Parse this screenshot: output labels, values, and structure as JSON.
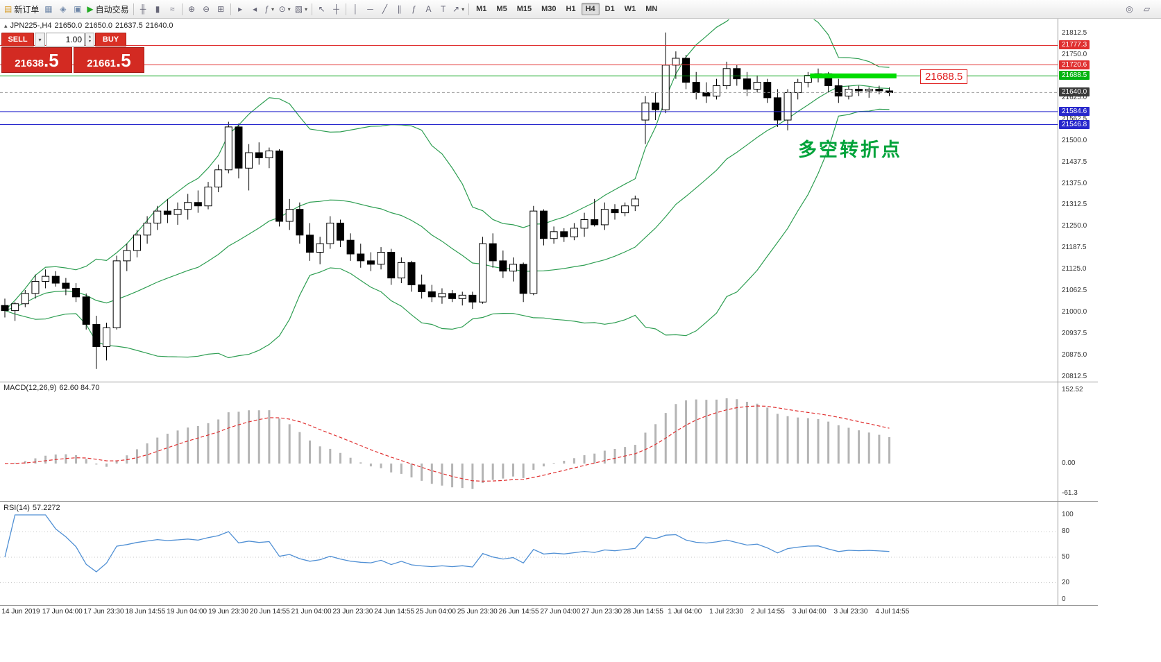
{
  "toolbar": {
    "groups": [
      [
        {
          "name": "new-order-button",
          "icon": "new-order-icon",
          "glyph": "▤",
          "color": "#d89c28",
          "label": "新订单"
        },
        {
          "name": "market-watch-button",
          "icon": "market-watch-icon",
          "glyph": "▦",
          "color": "#6f87a8"
        },
        {
          "name": "navigator-button",
          "icon": "navigator-icon",
          "glyph": "◈",
          "color": "#6f87a8"
        },
        {
          "name": "terminal-button",
          "icon": "terminal-icon",
          "glyph": "▣",
          "color": "#6f87a8"
        },
        {
          "name": "autotrading-button",
          "icon": "play-icon",
          "glyph": "▶",
          "color": "#22aa22",
          "label": "自动交易"
        }
      ],
      [
        {
          "name": "bar-chart-button",
          "icon": "bar-chart-icon",
          "glyph": "╫"
        },
        {
          "name": "candlestick-chart-button",
          "icon": "candlestick-icon",
          "glyph": "▮"
        },
        {
          "name": "line-chart-button",
          "icon": "line-chart-icon",
          "glyph": "≈"
        }
      ],
      [
        {
          "name": "zoom-in-button",
          "icon": "zoom-in-icon",
          "glyph": "⊕"
        },
        {
          "name": "zoom-out-button",
          "icon": "zoom-out-icon",
          "glyph": "⊖"
        },
        {
          "name": "tile-windows-button",
          "icon": "tile-windows-icon",
          "glyph": "⊞"
        }
      ],
      [
        {
          "name": "auto-scroll-button",
          "icon": "auto-scroll-icon",
          "glyph": "▸"
        },
        {
          "name": "chart-shift-button",
          "icon": "chart-shift-icon",
          "glyph": "◂"
        },
        {
          "name": "indicators-dropdown",
          "icon": "indicators-icon",
          "glyph": "ƒ",
          "dropdown": true
        },
        {
          "name": "periods-dropdown",
          "icon": "clock-icon",
          "glyph": "⊙",
          "dropdown": true
        },
        {
          "name": "templates-dropdown",
          "icon": "template-icon",
          "glyph": "▧",
          "dropdown": true
        }
      ],
      [
        {
          "name": "cursor-button",
          "icon": "cursor-icon",
          "glyph": "↖"
        },
        {
          "name": "crosshair-button",
          "icon": "crosshair-icon",
          "glyph": "┼"
        }
      ],
      [
        {
          "name": "vertical-line-button",
          "icon": "vertical-line-icon",
          "glyph": "│"
        },
        {
          "name": "horizontal-line-button",
          "icon": "horizontal-line-icon",
          "glyph": "─"
        },
        {
          "name": "trendline-button",
          "icon": "trendline-icon",
          "glyph": "╱"
        },
        {
          "name": "channel-button",
          "icon": "channel-icon",
          "glyph": "∥"
        },
        {
          "name": "fibonacci-button",
          "icon": "fibonacci-icon",
          "glyph": "ƒ"
        },
        {
          "name": "text-button",
          "icon": "text-icon",
          "glyph": "A"
        },
        {
          "name": "label-button",
          "icon": "label-icon",
          "glyph": "T"
        },
        {
          "name": "arrows-dropdown",
          "icon": "arrow-icon",
          "glyph": "↗",
          "dropdown": true
        }
      ]
    ],
    "timeframes": [
      "M1",
      "M5",
      "M15",
      "M30",
      "H1",
      "H4",
      "D1",
      "W1",
      "MN"
    ],
    "active_timeframe": "H4",
    "right_items": [
      {
        "name": "search-button",
        "icon": "search-icon",
        "glyph": "◎"
      },
      {
        "name": "new-chart-button",
        "icon": "chart-window-icon",
        "glyph": "▱"
      }
    ]
  },
  "header": {
    "symbol_period": "JPN225-,H4",
    "open": "21650.0",
    "high": "21650.0",
    "low": "21637.5",
    "close": "21640.0"
  },
  "trade_panel": {
    "sell_label": "SELL",
    "buy_label": "BUY",
    "volume": "1.00",
    "sell_price_main": "21638",
    "sell_price_frac": ".5",
    "buy_price_main": "21661",
    "buy_price_frac": ".5"
  },
  "annotation": {
    "text": "多空转折点",
    "color": "#00a33a"
  },
  "chart_data": {
    "type": "candlestick",
    "symbol": "JPN225-",
    "timeframe": "H4",
    "price_axis": {
      "max": 21812.5,
      "min": 20812.5,
      "step": 62.5,
      "values": [
        21812.5,
        21750.0,
        21687.5,
        21625.0,
        21562.5,
        21500.0,
        21437.5,
        21375.0,
        21312.5,
        21250.0,
        21187.5,
        21125.0,
        21062.5,
        21000.0,
        20937.5,
        20875.0,
        20812.5
      ]
    },
    "candles": [
      [
        21020,
        21040,
        20985,
        21005
      ],
      [
        21005,
        21030,
        20975,
        21025
      ],
      [
        21025,
        21065,
        21015,
        21055
      ],
      [
        21055,
        21110,
        21040,
        21090
      ],
      [
        21090,
        21125,
        21070,
        21105
      ],
      [
        21105,
        21120,
        21075,
        21085
      ],
      [
        21085,
        21100,
        21050,
        21070
      ],
      [
        21070,
        21085,
        21030,
        21045
      ],
      [
        21045,
        21055,
        20950,
        20965
      ],
      [
        20965,
        20990,
        20835,
        20900
      ],
      [
        20900,
        20970,
        20860,
        20955
      ],
      [
        20955,
        21165,
        20950,
        21150
      ],
      [
        21150,
        21200,
        21120,
        21180
      ],
      [
        21180,
        21240,
        21160,
        21225
      ],
      [
        21225,
        21280,
        21200,
        21260
      ],
      [
        21260,
        21310,
        21240,
        21295
      ],
      [
        21295,
        21330,
        21260,
        21285
      ],
      [
        21285,
        21320,
        21255,
        21300
      ],
      [
        21300,
        21345,
        21270,
        21320
      ],
      [
        21320,
        21355,
        21290,
        21310
      ],
      [
        21310,
        21380,
        21300,
        21365
      ],
      [
        21365,
        21430,
        21350,
        21415
      ],
      [
        21415,
        21555,
        21405,
        21540
      ],
      [
        21540,
        21550,
        21390,
        21420
      ],
      [
        21420,
        21490,
        21355,
        21465
      ],
      [
        21465,
        21495,
        21430,
        21450
      ],
      [
        21450,
        21480,
        21420,
        21470
      ],
      [
        21470,
        21475,
        21250,
        21265
      ],
      [
        21265,
        21330,
        21240,
        21300
      ],
      [
        21300,
        21320,
        21200,
        21225
      ],
      [
        21225,
        21260,
        21150,
        21175
      ],
      [
        21175,
        21220,
        21140,
        21200
      ],
      [
        21200,
        21280,
        21185,
        21260
      ],
      [
        21260,
        21270,
        21190,
        21210
      ],
      [
        21210,
        21230,
        21150,
        21170
      ],
      [
        21170,
        21200,
        21130,
        21150
      ],
      [
        21150,
        21175,
        21120,
        21140
      ],
      [
        21140,
        21190,
        21125,
        21175
      ],
      [
        21175,
        21185,
        21080,
        21100
      ],
      [
        21100,
        21160,
        21085,
        21145
      ],
      [
        21145,
        21150,
        21060,
        21080
      ],
      [
        21080,
        21110,
        21040,
        21060
      ],
      [
        21060,
        21080,
        21030,
        21045
      ],
      [
        21045,
        21070,
        21025,
        21055
      ],
      [
        21055,
        21065,
        21030,
        21040
      ],
      [
        21040,
        21060,
        21020,
        21050
      ],
      [
        21050,
        21060,
        21010,
        21030
      ],
      [
        21030,
        21220,
        21025,
        21200
      ],
      [
        21200,
        21230,
        21130,
        21150
      ],
      [
        21150,
        21180,
        21100,
        21120
      ],
      [
        21120,
        21160,
        21090,
        21140
      ],
      [
        21140,
        21145,
        21030,
        21055
      ],
      [
        21055,
        21310,
        21050,
        21295
      ],
      [
        21295,
        21300,
        21195,
        21215
      ],
      [
        21215,
        21250,
        21200,
        21235
      ],
      [
        21235,
        21245,
        21205,
        21220
      ],
      [
        21220,
        21260,
        21210,
        21245
      ],
      [
        21245,
        21290,
        21220,
        21270
      ],
      [
        21270,
        21330,
        21250,
        21255
      ],
      [
        21255,
        21320,
        21240,
        21300
      ],
      [
        21300,
        21315,
        21270,
        21290
      ],
      [
        21290,
        21320,
        21280,
        21310
      ],
      [
        21310,
        21340,
        21295,
        21330
      ],
      [
        21560,
        21630,
        21490,
        21610
      ],
      [
        21610,
        21640,
        21560,
        21590
      ],
      [
        21590,
        21815,
        21580,
        21720
      ],
      [
        21720,
        21760,
        21680,
        21740
      ],
      [
        21740,
        21750,
        21650,
        21670
      ],
      [
        21670,
        21700,
        21620,
        21640
      ],
      [
        21640,
        21670,
        21610,
        21630
      ],
      [
        21630,
        21680,
        21620,
        21660
      ],
      [
        21660,
        21730,
        21650,
        21710
      ],
      [
        21710,
        21720,
        21660,
        21680
      ],
      [
        21680,
        21700,
        21630,
        21650
      ],
      [
        21650,
        21690,
        21640,
        21670
      ],
      [
        21670,
        21680,
        21610,
        21625
      ],
      [
        21625,
        21650,
        21540,
        21560
      ],
      [
        21560,
        21650,
        21530,
        21640
      ],
      [
        21640,
        21680,
        21620,
        21670
      ],
      [
        21670,
        21700,
        21655,
        21690
      ],
      [
        21690,
        21710,
        21670,
        21695
      ],
      [
        21695,
        21700,
        21640,
        21660
      ],
      [
        21660,
        21680,
        21610,
        21630
      ],
      [
        21630,
        21660,
        21620,
        21650
      ],
      [
        21650,
        21660,
        21630,
        21645
      ],
      [
        21645,
        21655,
        21625,
        21650
      ],
      [
        21650,
        21660,
        21635,
        21645
      ],
      [
        21645,
        21655,
        21630,
        21640
      ]
    ],
    "bollinger": {
      "period": 20,
      "deviation": 2,
      "color": "#2e9e52"
    },
    "levels": [
      {
        "name": "resistance-line-1",
        "price": 21777.3,
        "color": "#e03030",
        "style": "solid",
        "badge": "21777.3",
        "badge_bg": "#e03030"
      },
      {
        "name": "resistance-line-2",
        "price": 21720.6,
        "color": "#e03030",
        "style": "solid",
        "badge": "21720.6",
        "badge_bg": "#e03030"
      },
      {
        "name": "pivot-line",
        "price": 21688.5,
        "color": "#00a010",
        "style": "solid",
        "badge": "21688.5",
        "badge_bg": "#00b410"
      },
      {
        "name": "current-price-line",
        "price": 21640.0,
        "color": "#9a9a9a",
        "style": "dashed",
        "badge": "21640.0",
        "badge_bg": "#3a3a3a"
      },
      {
        "name": "support-line-1",
        "price": 21584.6,
        "color": "#2424cc",
        "style": "solid",
        "badge": "21584.6",
        "badge_bg": "#2828cc"
      },
      {
        "name": "support-line-2",
        "price": 21546.8,
        "color": "#2424cc",
        "style": "solid",
        "badge": "21546.8",
        "badge_bg": "#2828cc"
      }
    ],
    "highlight_segment": {
      "label": "21688.5",
      "price": 21688.5,
      "bar_from": 79.2,
      "bar_to": 87.7,
      "color": "#00dc00"
    },
    "macd": {
      "name_label": "MACD(12,26,9)",
      "values_label": "62.60 84.70",
      "params": [
        12,
        26,
        9
      ],
      "hist_color": "#b4b4b4",
      "signal_color": "#e03030",
      "scale": [
        {
          "text": "152.52",
          "v": 152.52
        },
        {
          "text": "0.00",
          "v": 0
        },
        {
          "text": "-61.3",
          "v": -61.3
        }
      ]
    },
    "rsi": {
      "name_label": "RSI(14)",
      "value_label": "57.2272",
      "period": 14,
      "color": "#4f8fd4",
      "levels": [
        80,
        50,
        20
      ],
      "scale": [
        {
          "text": "100",
          "v": 100
        },
        {
          "text": "80",
          "v": 80
        },
        {
          "text": "50",
          "v": 50
        },
        {
          "text": "20",
          "v": 20
        },
        {
          "text": "0",
          "v": 0
        }
      ]
    },
    "time_labels": [
      "14 Jun 2019",
      "17 Jun 04:00",
      "17 Jun 23:30",
      "18 Jun 14:55",
      "19 Jun 04:00",
      "19 Jun 23:30",
      "20 Jun 14:55",
      "21 Jun 04:00",
      "23 Jun 23:30",
      "24 Jun 14:55",
      "25 Jun 04:00",
      "25 Jun 23:30",
      "26 Jun 14:55",
      "27 Jun 04:00",
      "27 Jun 23:30",
      "28 Jun 14:55",
      "1 Jul 04:00",
      "1 Jul 23:30",
      "2 Jul 14:55",
      "3 Jul 04:00",
      "3 Jul 23:30",
      "4 Jul 14:55"
    ]
  }
}
